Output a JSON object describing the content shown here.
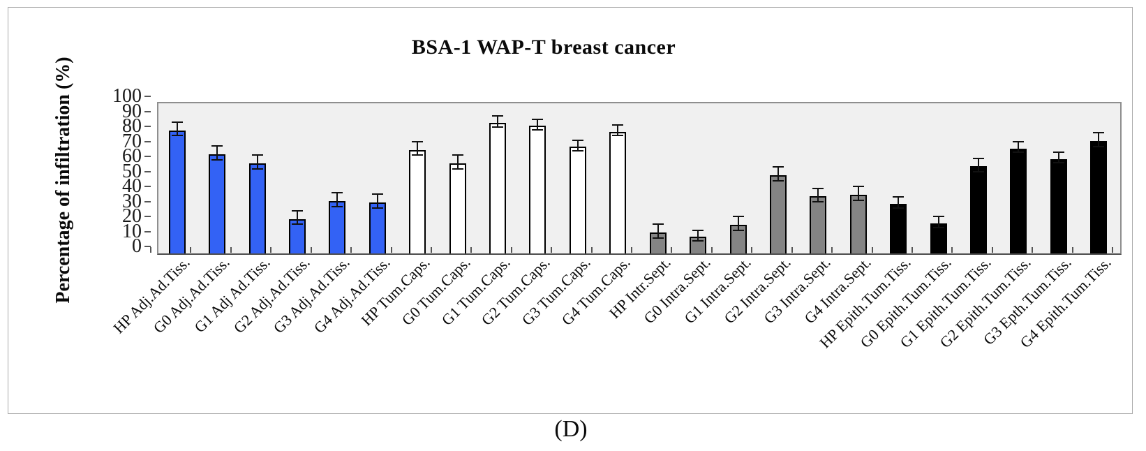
{
  "figure": {
    "caption": "(D)"
  },
  "chart_data": {
    "type": "bar",
    "title": "BSA-1 WAP-T breast cancer",
    "ylabel": "Percentage of infiltration (%)",
    "xlabel": "",
    "ylim": [
      0,
      100
    ],
    "yticks": [
      0,
      10,
      20,
      30,
      40,
      50,
      60,
      70,
      80,
      90,
      100
    ],
    "grid": false,
    "legend_position": "none",
    "error_bars": true,
    "colors": {
      "blue_series": "#3362F5",
      "white_series": "#FFFFFF",
      "gray_series": "#848484",
      "black_series": "#000000",
      "plot_background": "#F0F0F0",
      "bar_outline": "#000000"
    },
    "bars": [
      {
        "label": "HP Adj.Ad.Tiss.",
        "value": 82,
        "error": 5,
        "color": "#3362F5"
      },
      {
        "label": "G0 Adj.Ad.Tiss.",
        "value": 66,
        "error": 5,
        "color": "#3362F5"
      },
      {
        "label": "G1 Adj Ad.Tiss.",
        "value": 60,
        "error": 5,
        "color": "#3362F5"
      },
      {
        "label": "G2 Adj.Ad.Tiss.",
        "value": 23,
        "error": 5,
        "color": "#3362F5"
      },
      {
        "label": "G3 Adj.Ad.Tiss.",
        "value": 35,
        "error": 5,
        "color": "#3362F5"
      },
      {
        "label": "G4 Adj.Ad.Tiss.",
        "value": 34,
        "error": 5,
        "color": "#3362F5"
      },
      {
        "label": "HP Tum.Caps.",
        "value": 69,
        "error": 5,
        "color": "#FFFFFF"
      },
      {
        "label": "G0 Tum.Caps.",
        "value": 60,
        "error": 5,
        "color": "#FFFFFF"
      },
      {
        "label": "G1 Tum.Caps.",
        "value": 87,
        "error": 4,
        "color": "#FFFFFF"
      },
      {
        "label": "G2 Tum.Caps.",
        "value": 85,
        "error": 4,
        "color": "#FFFFFF"
      },
      {
        "label": "G3 Tum.Caps.",
        "value": 71,
        "error": 4,
        "color": "#FFFFFF"
      },
      {
        "label": "G4 Tum.Caps.",
        "value": 81,
        "error": 4,
        "color": "#FFFFFF"
      },
      {
        "label": "HP Intr.Sept.",
        "value": 14,
        "error": 5,
        "color": "#848484"
      },
      {
        "label": "G0 Intra.Sept.",
        "value": 11,
        "error": 4,
        "color": "#848484"
      },
      {
        "label": "G1 Intra.Sept.",
        "value": 19,
        "error": 5,
        "color": "#848484"
      },
      {
        "label": "G2 Intra.Sept.",
        "value": 52,
        "error": 5,
        "color": "#848484"
      },
      {
        "label": "G3 Intra.Sept.",
        "value": 38,
        "error": 5,
        "color": "#848484"
      },
      {
        "label": "G4 Intra.Sept.",
        "value": 39,
        "error": 5,
        "color": "#848484"
      },
      {
        "label": "HP Epith.Tum.Tiss.",
        "value": 33,
        "error": 4,
        "color": "#000000"
      },
      {
        "label": "G0 Epith.Tum.Tiss.",
        "value": 20,
        "error": 4,
        "color": "#000000"
      },
      {
        "label": "G1 Epith.Tum.Tiss.",
        "value": 58,
        "error": 5,
        "color": "#000000"
      },
      {
        "label": "G2 Epith.Tum.Tiss.",
        "value": 70,
        "error": 4,
        "color": "#000000"
      },
      {
        "label": "G3 Epth.Tum.Tiss.",
        "value": 63,
        "error": 4,
        "color": "#000000"
      },
      {
        "label": "G4 Epith.Tum.Tiss.",
        "value": 75,
        "error": 5,
        "color": "#000000"
      }
    ]
  }
}
